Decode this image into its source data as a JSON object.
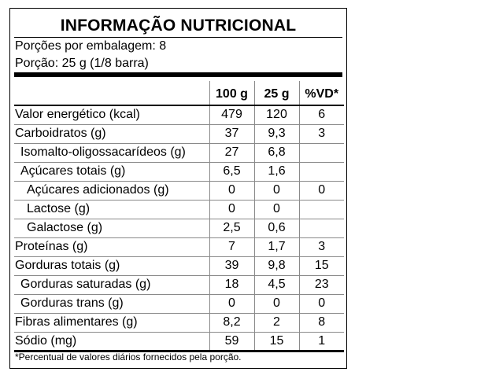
{
  "label": {
    "title": "INFORMAÇÃO NUTRICIONAL",
    "servings_per_package": "Porções por embalagem: 8",
    "serving_size": "Porção: 25 g (1/8 barra)",
    "columns": [
      "100 g",
      "25 g",
      "%VD*"
    ],
    "rows": [
      {
        "name": "Valor energético (kcal)",
        "per100": "479",
        "per_serving": "120",
        "dv": "6"
      },
      {
        "name": "Carboidratos (g)",
        "per100": "37",
        "per_serving": "9,3",
        "dv": "3"
      },
      {
        "name": "Isomalto-oligossacarídeos (g)",
        "per100": "27",
        "per_serving": "6,8",
        "dv": ""
      },
      {
        "name": "Açúcares totais (g)",
        "per100": "6,5",
        "per_serving": "1,6",
        "dv": ""
      },
      {
        "name": "Açúcares adicionados (g)",
        "per100": "0",
        "per_serving": "0",
        "dv": "0"
      },
      {
        "name": "Lactose (g)",
        "per100": "0",
        "per_serving": "0",
        "dv": ""
      },
      {
        "name": "Galactose (g)",
        "per100": "2,5",
        "per_serving": "0,6",
        "dv": ""
      },
      {
        "name": "Proteínas (g)",
        "per100": "7",
        "per_serving": "1,7",
        "dv": "3"
      },
      {
        "name": "Gorduras totais (g)",
        "per100": "39",
        "per_serving": "9,8",
        "dv": "15"
      },
      {
        "name": "Gorduras saturadas (g)",
        "per100": "18",
        "per_serving": "4,5",
        "dv": "23"
      },
      {
        "name": "Gorduras trans (g)",
        "per100": "0",
        "per_serving": "0",
        "dv": "0"
      },
      {
        "name": "Fibras alimentares (g)",
        "per100": "8,2",
        "per_serving": "2",
        "dv": "8"
      },
      {
        "name": "Sódio (mg)",
        "per100": "59",
        "per_serving": "15",
        "dv": "1"
      }
    ],
    "footnote": "*Percentual de valores diários fornecidos pela porção."
  }
}
